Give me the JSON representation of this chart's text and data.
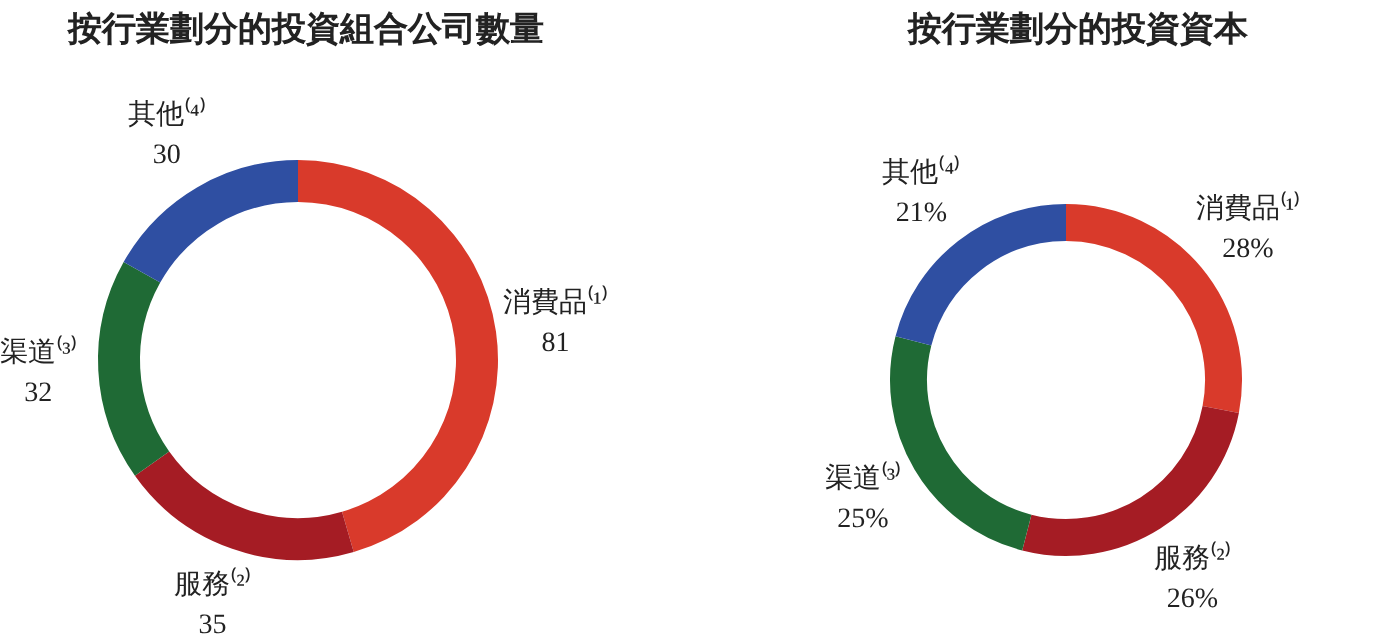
{
  "chart_data": [
    {
      "type": "donut",
      "title": "按行業劃分的投資組合公司數量",
      "categories": [
        "消費品⁽¹⁾",
        "服務⁽²⁾",
        "渠道⁽³⁾",
        "其他⁽⁴⁾"
      ],
      "values": [
        81,
        35,
        32,
        30
      ],
      "colors": [
        "#d93a2b",
        "#a51c24",
        "#1f6a35",
        "#2f4fa2"
      ],
      "data_labels": true
    },
    {
      "type": "donut",
      "title": "按行業劃分的投資資本",
      "categories": [
        "消費品⁽¹⁾",
        "服務⁽²⁾",
        "渠道⁽³⁾",
        "其他⁽⁴⁾"
      ],
      "values": [
        28,
        26,
        25,
        21
      ],
      "colors": [
        "#d93a2b",
        "#a51c24",
        "#1f6a35",
        "#2f4fa2"
      ],
      "value_labels": [
        "28%",
        "26%",
        "25%",
        "21%"
      ]
    }
  ]
}
